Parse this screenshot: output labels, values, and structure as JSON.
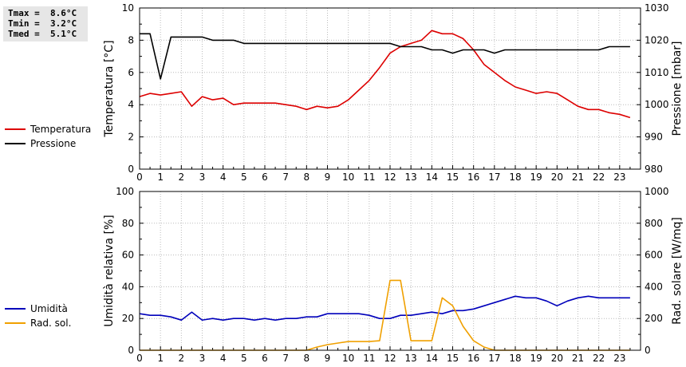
{
  "stats": {
    "tmax": "Tmax =  8.6°C",
    "tmin": "Tmin =  3.2°C",
    "tmed": "Tmed =  5.1°C"
  },
  "colors": {
    "temperature": "#dd0000",
    "pressure": "#000000",
    "humidity": "#0000bb",
    "radiation": "#f0a000",
    "grid": "#bbbbbb"
  },
  "chart_data": [
    {
      "type": "line",
      "ylabel": "Temperatura [°C]",
      "y2label": "Pressione [mbar]",
      "xlim": [
        0,
        24
      ],
      "ylim": [
        0,
        10
      ],
      "y2lim": [
        980,
        1030
      ],
      "xticks": [
        "0",
        "1",
        "2",
        "3",
        "4",
        "5",
        "6",
        "7",
        "8",
        "9",
        "10",
        "11",
        "12",
        "13",
        "14",
        "15",
        "16",
        "17",
        "18",
        "19",
        "20",
        "21",
        "22",
        "23"
      ],
      "yticks": [
        "0",
        "2",
        "4",
        "6",
        "8",
        "10"
      ],
      "y2ticks": [
        "980",
        "990",
        "1000",
        "1010",
        "1020",
        "1030"
      ],
      "grid": true,
      "legend_position": "left",
      "series": [
        {
          "name": "Temperatura",
          "axis": "left",
          "x": [
            0,
            0.5,
            1,
            1.5,
            2,
            2.5,
            3,
            3.5,
            4,
            4.5,
            5,
            5.5,
            6,
            6.5,
            7,
            7.5,
            8,
            8.5,
            9,
            9.5,
            10,
            10.5,
            11,
            11.5,
            12,
            12.5,
            13,
            13.5,
            14,
            14.5,
            15,
            15.5,
            16,
            16.5,
            17,
            17.5,
            18,
            18.5,
            19,
            19.5,
            20,
            20.5,
            21,
            21.5,
            22,
            22.5,
            23,
            23.5
          ],
          "y": [
            4.5,
            4.7,
            4.6,
            4.7,
            4.8,
            3.9,
            4.5,
            4.3,
            4.4,
            4.0,
            4.1,
            4.1,
            4.1,
            4.1,
            4.0,
            3.9,
            3.7,
            3.9,
            3.8,
            3.9,
            4.3,
            4.9,
            5.5,
            6.3,
            7.2,
            7.6,
            7.8,
            8.0,
            8.6,
            8.4,
            8.4,
            8.1,
            7.4,
            6.5,
            6.0,
            5.5,
            5.1,
            4.9,
            4.7,
            4.8,
            4.7,
            4.3,
            3.9,
            3.7,
            3.7,
            3.5,
            3.4,
            3.2
          ]
        },
        {
          "name": "Pressione",
          "axis": "right",
          "x": [
            0,
            0.5,
            1,
            1.5,
            2,
            2.5,
            3,
            3.5,
            4,
            4.5,
            5,
            5.5,
            6,
            6.5,
            7,
            7.5,
            8,
            8.5,
            9,
            9.5,
            10,
            10.5,
            11,
            11.5,
            12,
            12.5,
            13,
            13.5,
            14,
            14.5,
            15,
            15.5,
            16,
            16.5,
            17,
            17.5,
            18,
            18.5,
            19,
            19.5,
            20,
            20.5,
            21,
            21.5,
            22,
            22.5,
            23,
            23.5
          ],
          "y": [
            1022,
            1022,
            1008,
            1021,
            1021,
            1021,
            1021,
            1020,
            1020,
            1020,
            1019,
            1019,
            1019,
            1019,
            1019,
            1019,
            1019,
            1019,
            1019,
            1019,
            1019,
            1019,
            1019,
            1019,
            1019,
            1018,
            1018,
            1018,
            1017,
            1017,
            1016,
            1017,
            1017,
            1017,
            1016,
            1017,
            1017,
            1017,
            1017,
            1017,
            1017,
            1017,
            1017,
            1017,
            1017,
            1018,
            1018,
            1018
          ]
        }
      ]
    },
    {
      "type": "line",
      "ylabel": "Umidità relativa [%]",
      "y2label": "Rad. solare [W/mq]",
      "xlim": [
        0,
        24
      ],
      "ylim": [
        0,
        100
      ],
      "y2lim": [
        0,
        1000
      ],
      "xticks": [
        "0",
        "1",
        "2",
        "3",
        "4",
        "5",
        "6",
        "7",
        "8",
        "9",
        "10",
        "11",
        "12",
        "13",
        "14",
        "15",
        "16",
        "17",
        "18",
        "19",
        "20",
        "21",
        "22",
        "23"
      ],
      "yticks": [
        "0",
        "20",
        "40",
        "60",
        "80",
        "100"
      ],
      "y2ticks": [
        "0",
        "200",
        "400",
        "600",
        "800",
        "1000"
      ],
      "grid": true,
      "legend_position": "left",
      "series": [
        {
          "name": "Umidità",
          "axis": "left",
          "x": [
            0,
            0.5,
            1,
            1.5,
            2,
            2.5,
            3,
            3.5,
            4,
            4.5,
            5,
            5.5,
            6,
            6.5,
            7,
            7.5,
            8,
            8.5,
            9,
            9.5,
            10,
            10.5,
            11,
            11.5,
            12,
            12.5,
            13,
            13.5,
            14,
            14.5,
            15,
            15.5,
            16,
            16.5,
            17,
            17.5,
            18,
            18.5,
            19,
            19.5,
            20,
            20.5,
            21,
            21.5,
            22,
            22.5,
            23,
            23.5
          ],
          "y": [
            23,
            22,
            22,
            21,
            19,
            24,
            19,
            20,
            19,
            20,
            20,
            19,
            20,
            19,
            20,
            20,
            21,
            21,
            23,
            23,
            23,
            23,
            22,
            20,
            20,
            22,
            22,
            23,
            24,
            23,
            25,
            25,
            26,
            28,
            30,
            32,
            34,
            33,
            33,
            31,
            28,
            31,
            33,
            34,
            33,
            33,
            33,
            33
          ]
        },
        {
          "name": "Rad. sol.",
          "axis": "right",
          "x": [
            0,
            0.5,
            1,
            1.5,
            2,
            2.5,
            3,
            3.5,
            4,
            4.5,
            5,
            5.5,
            6,
            6.5,
            7,
            7.5,
            8,
            8.5,
            9,
            9.5,
            10,
            10.5,
            11,
            11.5,
            12,
            12.5,
            13,
            13.5,
            14,
            14.5,
            15,
            15.5,
            16,
            16.5,
            17,
            17.5,
            18,
            18.5,
            19,
            19.5,
            20,
            20.5,
            21,
            21.5,
            22,
            22.5,
            23,
            23.5
          ],
          "y": [
            0,
            0,
            0,
            0,
            0,
            0,
            0,
            0,
            0,
            0,
            0,
            0,
            0,
            0,
            0,
            0,
            0,
            20,
            35,
            45,
            55,
            55,
            55,
            60,
            440,
            440,
            60,
            60,
            60,
            330,
            280,
            150,
            60,
            20,
            0,
            0,
            0,
            0,
            0,
            0,
            0,
            0,
            0,
            0,
            0,
            0,
            0,
            0
          ]
        }
      ]
    }
  ]
}
